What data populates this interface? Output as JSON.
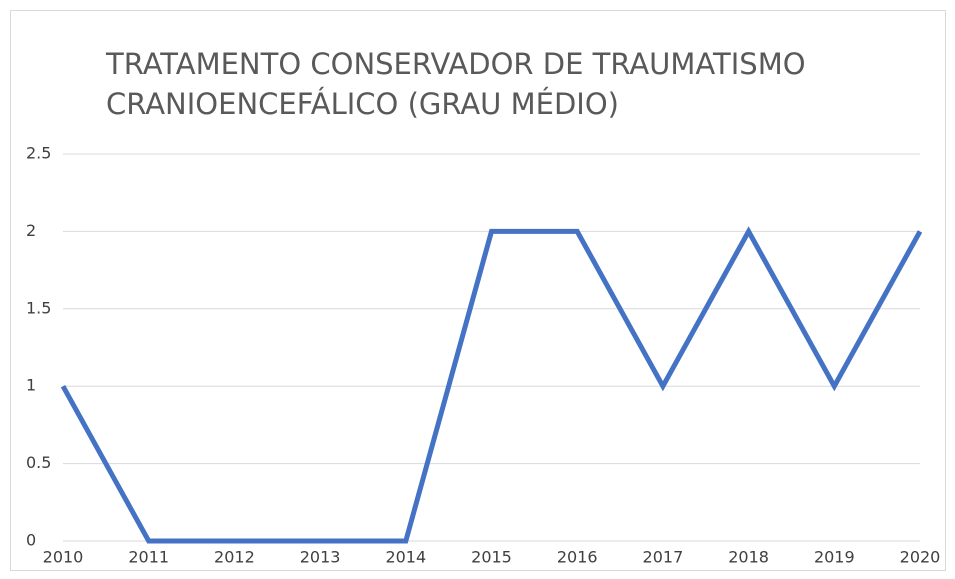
{
  "chart_data": {
    "type": "line",
    "title": "TRATAMENTO CONSERVADOR DE TRAUMATISMO CRANIOENCEFÁLICO (GRAU MÉDIO)",
    "categories": [
      "2010",
      "2011",
      "2012",
      "2013",
      "2014",
      "2015",
      "2016",
      "2017",
      "2018",
      "2019",
      "2020"
    ],
    "series": [
      {
        "color": "#4472c4",
        "values": [
          1,
          0,
          0,
          0,
          0,
          2,
          2,
          1,
          2,
          1,
          2
        ]
      }
    ],
    "ylim": [
      0,
      2.5
    ],
    "yticks": [
      0,
      0.5,
      1,
      1.5,
      2,
      2.5
    ],
    "grid": true
  }
}
